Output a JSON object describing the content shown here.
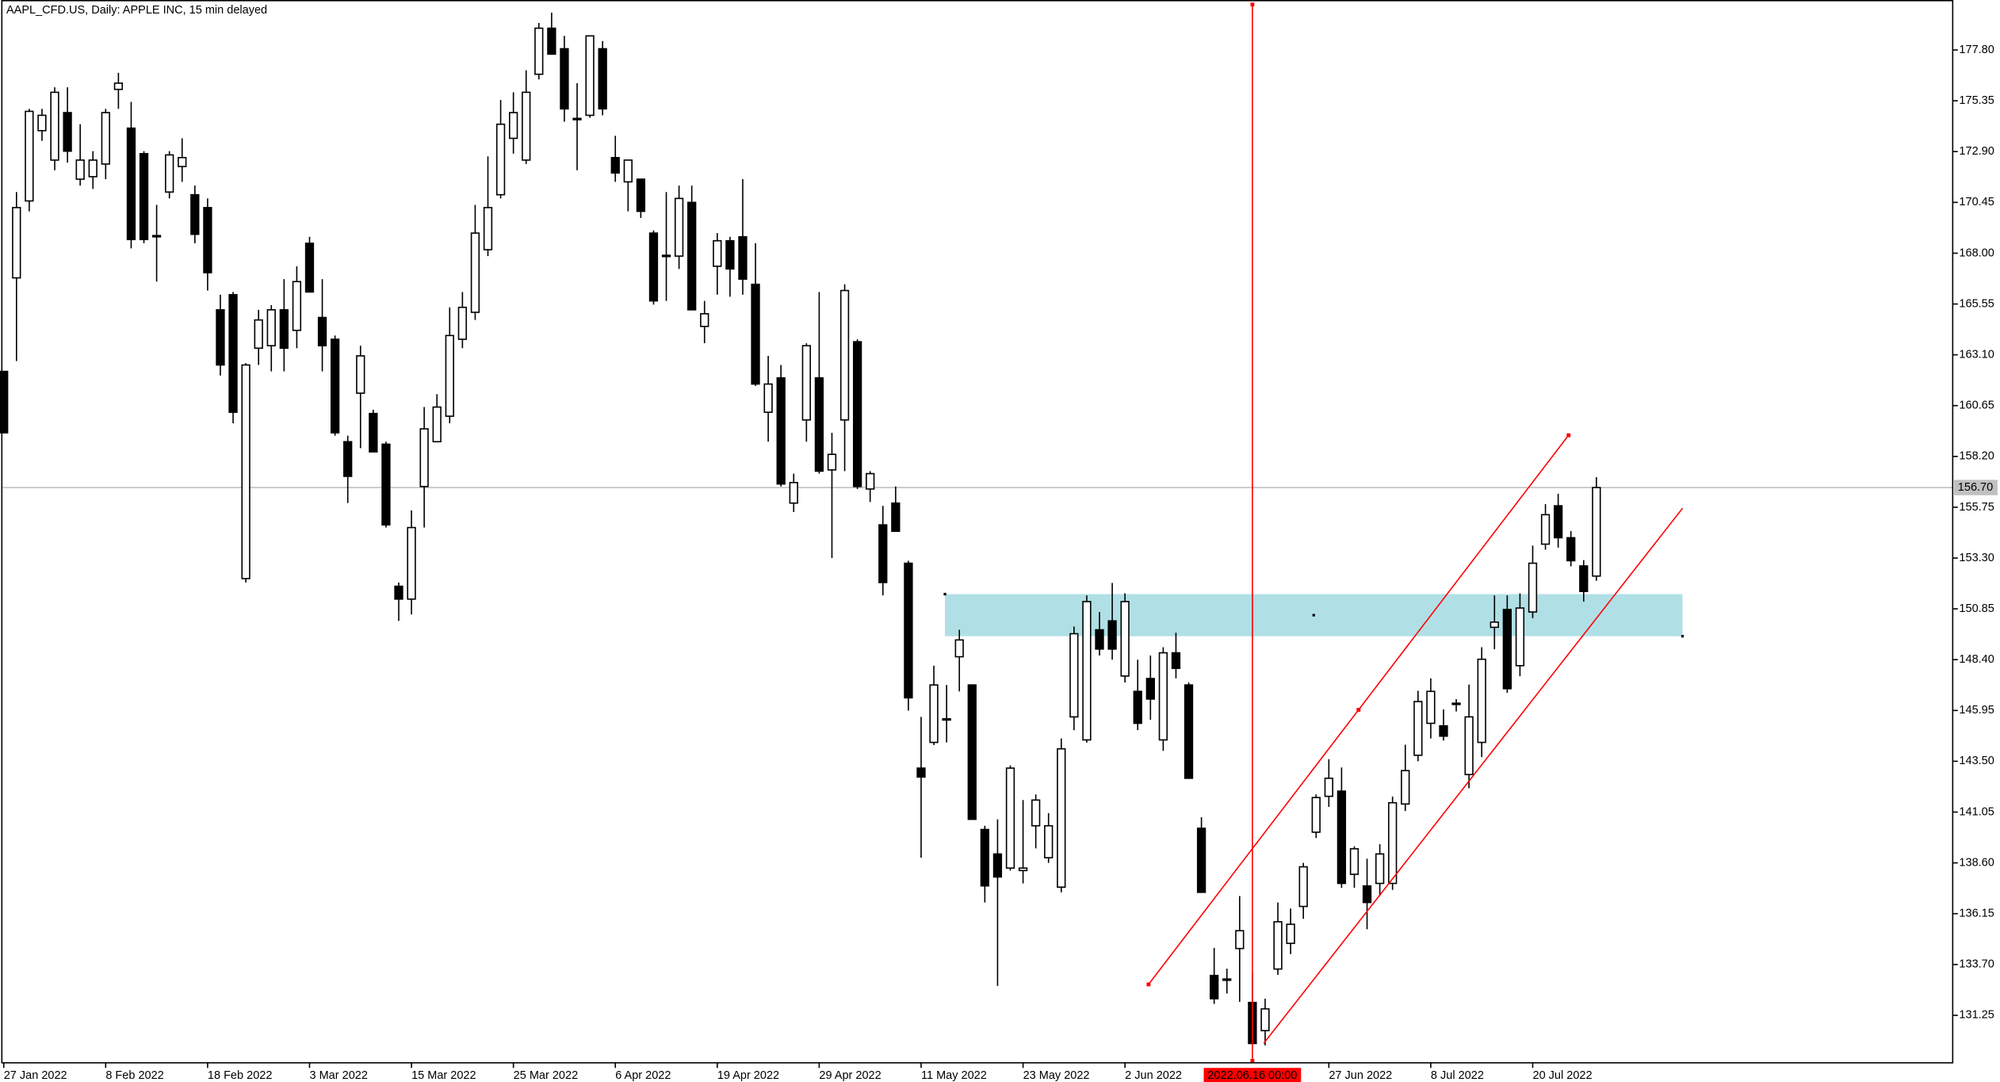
{
  "chart_data": {
    "type": "candlestick",
    "title": "AAPL_CFD.US, Daily:  APPLE INC, 15 min delayed",
    "categories": [
      "27 Jan 2022",
      null,
      null,
      null,
      null,
      null,
      null,
      null,
      "8 Feb 2022",
      null,
      null,
      null,
      null,
      null,
      null,
      null,
      "18 Feb 2022",
      null,
      null,
      null,
      null,
      null,
      null,
      null,
      "3 Mar 2022",
      null,
      null,
      null,
      null,
      null,
      null,
      null,
      "15 Mar 2022",
      null,
      null,
      null,
      null,
      null,
      null,
      null,
      "25 Mar 2022",
      null,
      null,
      null,
      null,
      null,
      null,
      null,
      "6 Apr 2022",
      null,
      null,
      null,
      null,
      null,
      null,
      null,
      "19 Apr 2022",
      null,
      null,
      null,
      null,
      null,
      null,
      null,
      "29 Apr 2022",
      null,
      null,
      null,
      null,
      null,
      null,
      null,
      "11 May 2022",
      null,
      null,
      null,
      null,
      null,
      null,
      null,
      "23 May 2022",
      null,
      null,
      null,
      null,
      null,
      null,
      null,
      "2 Jun 2022",
      null,
      null,
      null,
      null,
      null,
      null,
      null,
      null,
      null,
      null,
      null,
      null,
      null,
      null,
      null,
      "27 Jun 2022",
      null,
      null,
      null,
      null,
      null,
      null,
      null,
      "8 Jul 2022",
      null,
      null,
      null,
      null,
      null,
      null,
      null,
      "20 Jul 2022",
      null,
      null,
      null,
      null,
      null
    ],
    "open": [
      162.3,
      166.81,
      170.52,
      173.91,
      172.49,
      174.78,
      171.57,
      171.69,
      172.3,
      175.9,
      174.03,
      172.8,
      168.79,
      170.95,
      172.18,
      170.82,
      170.2,
      165.27,
      166.0,
      152.31,
      163.42,
      163.54,
      165.27,
      164.28,
      168.48,
      164.9,
      163.85,
      158.91,
      161.25,
      160.27,
      158.79,
      151.94,
      151.32,
      156.75,
      158.91,
      160.14,
      163.85,
      165.15,
      168.17,
      170.82,
      173.54,
      172.49,
      176.63,
      178.85,
      177.86,
      174.47,
      174.65,
      177.86,
      172.61,
      171.44,
      171.57,
      168.97,
      167.86,
      167.86,
      170.45,
      164.47,
      167.37,
      168.6,
      168.79,
      166.5,
      160.33,
      161.99,
      155.95,
      159.96,
      161.99,
      157.55,
      159.96,
      163.73,
      156.63,
      154.9,
      155.95,
      153.05,
      143.17,
      144.41,
      145.52,
      148.54,
      147.18,
      140.21,
      139.03,
      138.35,
      138.23,
      140.39,
      138.85,
      137.43,
      145.64,
      144.53,
      149.84,
      150.27,
      147.61,
      146.87,
      147.49,
      144.53,
      148.73,
      147.18,
      140.27,
      133.17,
      132.98,
      134.47,
      131.87,
      130.51,
      133.48,
      134.72,
      136.5,
      140.08,
      141.81,
      142.06,
      138.05,
      137.49,
      137.61,
      137.61,
      141.44,
      143.79,
      145.33,
      145.21,
      146.25,
      142.86,
      144.41,
      149.96,
      150.82,
      148.11,
      150.7,
      153.97,
      155.82,
      154.28,
      152.92,
      152.43
    ],
    "high": [
      162.3,
      170.95,
      174.96,
      174.96,
      176.0,
      176.0,
      174.22,
      172.92,
      174.96,
      176.7,
      175.3,
      172.92,
      170.33,
      172.92,
      173.54,
      171.26,
      170.64,
      166.0,
      166.13,
      162.7,
      165.27,
      165.5,
      166.75,
      167.37,
      168.79,
      166.75,
      164.03,
      159.2,
      163.54,
      160.45,
      158.91,
      152.12,
      155.6,
      160.58,
      161.2,
      165.39,
      166.13,
      170.33,
      172.67,
      175.39,
      175.76,
      176.82,
      179.1,
      179.6,
      178.48,
      176.2,
      178.48,
      178.23,
      173.66,
      172.49,
      171.57,
      169.1,
      170.95,
      171.26,
      171.26,
      165.7,
      168.97,
      168.79,
      171.57,
      168.48,
      163.05,
      162.61,
      157.37,
      163.66,
      166.13,
      159.34,
      166.5,
      163.85,
      157.49,
      155.82,
      156.75,
      153.17,
      145.64,
      148.11,
      147.18,
      149.84,
      147.18,
      140.39,
      140.7,
      143.3,
      141.63,
      141.9,
      141.0,
      144.6,
      150.0,
      151.5,
      150.7,
      152.1,
      151.6,
      148.4,
      148.6,
      149.0,
      149.7,
      147.3,
      140.8,
      134.5,
      133.5,
      137.0,
      133.29,
      132.05,
      136.69,
      136.4,
      138.6,
      141.9,
      143.6,
      143.2,
      139.4,
      138.8,
      139.5,
      141.8,
      144.3,
      146.9,
      147.5,
      146.0,
      146.5,
      147.2,
      149.0,
      151.5,
      151.5,
      151.6,
      153.9,
      155.9,
      156.4,
      154.6,
      153.2,
      157.2
    ],
    "low": [
      159.34,
      162.8,
      170.02,
      173.42,
      172.0,
      172.37,
      171.26,
      171.1,
      171.57,
      174.96,
      168.23,
      168.48,
      166.63,
      170.64,
      171.44,
      168.48,
      166.2,
      162.1,
      159.8,
      152.12,
      162.61,
      162.3,
      162.3,
      163.42,
      166.13,
      162.3,
      159.2,
      155.95,
      158.6,
      158.42,
      154.77,
      150.27,
      150.58,
      154.77,
      158.91,
      159.8,
      163.42,
      164.78,
      167.86,
      170.64,
      172.8,
      172.3,
      176.38,
      177.6,
      174.34,
      172.0,
      174.53,
      174.65,
      171.44,
      170.02,
      169.7,
      165.52,
      165.7,
      167.24,
      165.27,
      163.66,
      166.0,
      165.9,
      166.0,
      161.6,
      158.91,
      156.75,
      155.52,
      158.91,
      157.37,
      153.3,
      157.49,
      156.63,
      156.0,
      151.5,
      154.59,
      145.94,
      138.85,
      144.28,
      144.41,
      146.87,
      140.7,
      136.69,
      132.67,
      138.23,
      137.61,
      139.3,
      138.6,
      137.18,
      145.0,
      144.4,
      148.6,
      148.4,
      147.3,
      145.0,
      145.5,
      144.0,
      147.5,
      142.68,
      137.18,
      131.8,
      132.3,
      131.9,
      129.89,
      129.8,
      133.2,
      134.2,
      135.9,
      139.8,
      141.3,
      137.4,
      137.4,
      135.4,
      137.0,
      137.3,
      141.1,
      143.5,
      144.6,
      144.5,
      145.9,
      142.2,
      143.7,
      148.9,
      146.8,
      147.6,
      150.4,
      153.7,
      153.8,
      152.9,
      151.2,
      152.2
    ],
    "close": [
      159.34,
      170.2,
      174.84,
      174.65,
      175.76,
      172.92,
      172.49,
      172.49,
      174.78,
      176.2,
      168.66,
      168.66,
      168.85,
      172.74,
      172.61,
      168.91,
      167.06,
      162.61,
      160.33,
      162.61,
      164.78,
      165.27,
      163.42,
      166.63,
      166.13,
      163.54,
      159.34,
      157.24,
      163.05,
      158.42,
      154.9,
      151.32,
      154.77,
      159.53,
      160.58,
      164.03,
      165.39,
      168.97,
      170.2,
      174.22,
      174.78,
      175.76,
      178.85,
      177.6,
      174.96,
      174.5,
      178.48,
      174.96,
      171.87,
      172.49,
      170.02,
      165.7,
      167.9,
      170.64,
      165.27,
      165.08,
      168.6,
      167.24,
      166.75,
      161.69,
      161.69,
      156.87,
      156.94,
      163.54,
      157.49,
      158.3,
      166.2,
      156.75,
      157.37,
      152.12,
      154.59,
      146.56,
      142.74,
      147.18,
      145.55,
      149.35,
      140.7,
      137.49,
      137.92,
      143.17,
      138.35,
      141.63,
      140.39,
      144.1,
      149.65,
      151.2,
      148.91,
      148.91,
      151.2,
      145.33,
      146.5,
      148.73,
      147.98,
      142.68,
      137.18,
      132.05,
      133.0,
      135.33,
      129.89,
      131.56,
      135.76,
      135.64,
      138.41,
      141.75,
      142.68,
      137.61,
      139.28,
      136.69,
      139.03,
      141.5,
      143.05,
      146.38,
      146.87,
      144.71,
      146.3,
      145.64,
      148.42,
      150.21,
      147.0,
      150.89,
      153.05,
      155.39,
      154.28,
      153.17,
      151.69,
      156.7
    ],
    "up_color": "#ffffff",
    "down_color": "#000000",
    "ylim": [
      128.96,
      180.21
    ],
    "yticks": [
      {
        "value": 177.8,
        "label": "177.80"
      },
      175.35,
      {
        "value": 172.9,
        "label": "172.90"
      },
      170.45,
      {
        "value": 168.0,
        "label": "168.00"
      },
      165.55,
      {
        "value": 163.1,
        "label": "163.10"
      },
      160.65,
      {
        "value": 158.2,
        "label": "158.20"
      },
      155.75,
      {
        "value": 153.3,
        "label": "153.30"
      },
      150.85,
      {
        "value": 148.4,
        "label": "148.40"
      },
      145.95,
      {
        "value": 143.5,
        "label": "143.50"
      },
      141.05,
      {
        "value": 138.6,
        "label": "138.60"
      },
      136.15,
      {
        "value": 133.7,
        "label": "133.70"
      },
      131.25
    ],
    "current_price": {
      "value": 156.7,
      "label": "156.70",
      "color": "#c0c0c0"
    },
    "crosshair": {
      "label": "2022.06.16 00:00",
      "color": "#ff0000"
    },
    "zone": {
      "range": [
        149.53,
        151.56
      ],
      "color": "#b0e0e6"
    },
    "channel": {
      "upper": [
        132.74,
        159.22
      ],
      "lower": [
        129.9,
        155.7
      ],
      "color": "#ff0000"
    }
  }
}
